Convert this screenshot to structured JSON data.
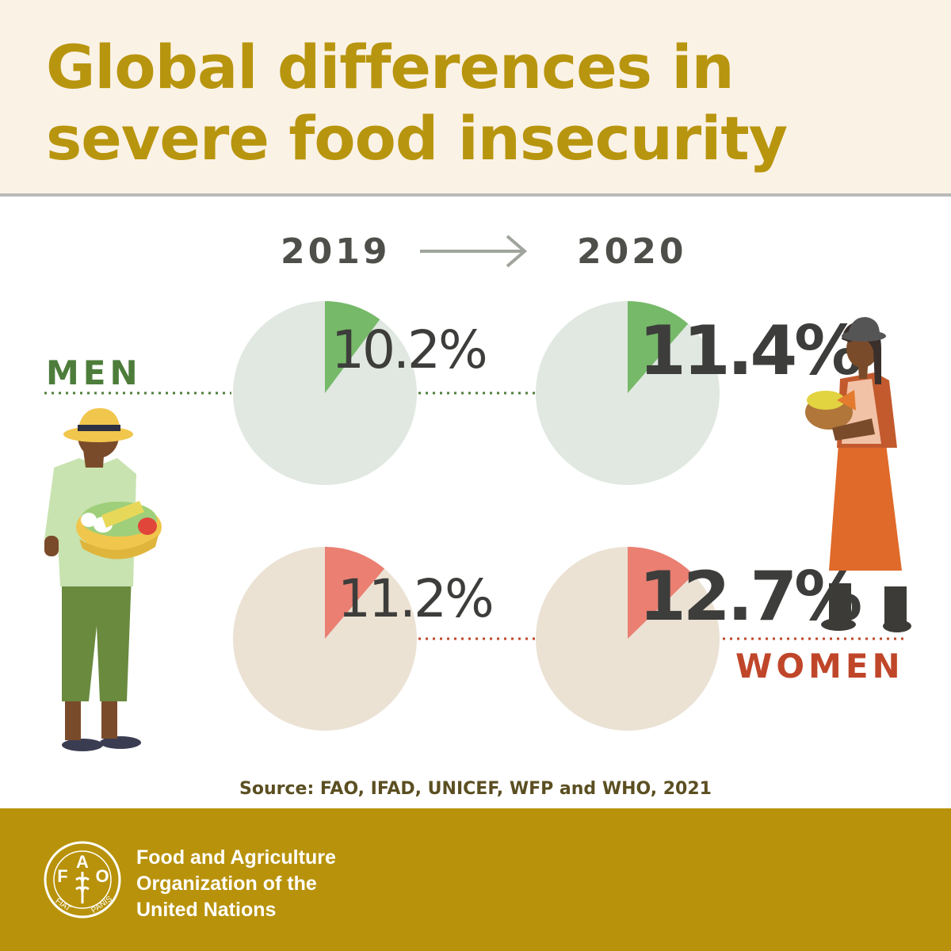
{
  "title": {
    "line1": "Global differences in",
    "line2": "severe food insecurity"
  },
  "years": [
    "2019",
    "2020"
  ],
  "groups": {
    "men_label": "MEN",
    "women_label": "WOMEN"
  },
  "chart_data": {
    "type": "pie",
    "title": "Global differences in severe food insecurity",
    "categories": [
      "2019",
      "2020"
    ],
    "series": [
      {
        "name": "MEN",
        "values": [
          10.2,
          11.4
        ],
        "labels": [
          "10.2%",
          "11.4%"
        ],
        "color": "#76b969",
        "base_color": "#e0e8e1"
      },
      {
        "name": "WOMEN",
        "values": [
          11.2,
          12.7
        ],
        "labels": [
          "11.2%",
          "12.7%"
        ],
        "color": "#ea7f72",
        "base_color": "#ebe2d4"
      }
    ],
    "unit": "%"
  },
  "source": "Source: FAO, IFAD, UNICEF, WFP and WHO, 2021",
  "footer": {
    "org_line1": "Food and Agriculture",
    "org_line2": "Organization of the",
    "org_line3": "United Nations",
    "logo_letters": [
      "F",
      "A",
      "O"
    ],
    "logo_motto": [
      "FIAT",
      "PANIS"
    ]
  },
  "colors": {
    "title": "#b8950e",
    "header_bg": "#fbf2e6",
    "footer_bg": "#b8920a",
    "men": "#4e7d3b",
    "women": "#c0462a"
  }
}
